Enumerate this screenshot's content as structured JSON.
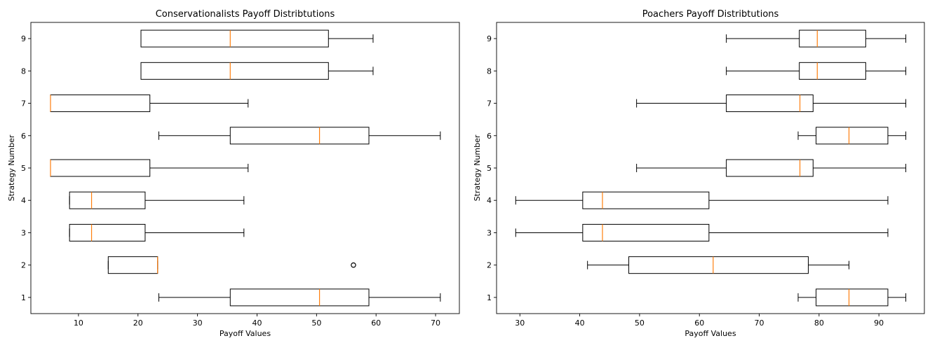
{
  "chart_data": [
    {
      "type": "boxplot",
      "orientation": "horizontal",
      "title": "Conservationalists Payoff Distribtutions",
      "xlabel": "Payoff Values",
      "ylabel": "Strategy Number",
      "xlim": [
        2,
        74
      ],
      "xticks": [
        10,
        20,
        30,
        40,
        50,
        60,
        70
      ],
      "ylim": [
        0.5,
        9.5
      ],
      "yticks": [
        1,
        2,
        3,
        4,
        5,
        6,
        7,
        8,
        9
      ],
      "colors": {
        "box": "#000000",
        "median": "#ff7f0e"
      },
      "boxes": [
        {
          "label": "1",
          "whisker_low": 23.5,
          "q1": 35.5,
          "median": 50.5,
          "q3": 58.8,
          "whisker_high": 70.8,
          "outliers": []
        },
        {
          "label": "2",
          "whisker_low": 15.0,
          "q1": 15.0,
          "median": 23.3,
          "q3": 23.3,
          "whisker_high": 23.3,
          "outliers": [
            56.2
          ]
        },
        {
          "label": "3",
          "whisker_low": 8.5,
          "q1": 8.5,
          "median": 12.2,
          "q3": 21.2,
          "whisker_high": 37.8,
          "outliers": []
        },
        {
          "label": "4",
          "whisker_low": 8.5,
          "q1": 8.5,
          "median": 12.2,
          "q3": 21.2,
          "whisker_high": 37.8,
          "outliers": []
        },
        {
          "label": "5",
          "whisker_low": 5.3,
          "q1": 5.3,
          "median": 5.3,
          "q3": 22.0,
          "whisker_high": 38.5,
          "outliers": []
        },
        {
          "label": "6",
          "whisker_low": 23.5,
          "q1": 35.5,
          "median": 50.5,
          "q3": 58.8,
          "whisker_high": 70.8,
          "outliers": []
        },
        {
          "label": "7",
          "whisker_low": 5.3,
          "q1": 5.3,
          "median": 5.3,
          "q3": 22.0,
          "whisker_high": 38.5,
          "outliers": []
        },
        {
          "label": "8",
          "whisker_low": 20.5,
          "q1": 20.5,
          "median": 35.5,
          "q3": 52.0,
          "whisker_high": 59.5,
          "outliers": []
        },
        {
          "label": "9",
          "whisker_low": 20.5,
          "q1": 20.5,
          "median": 35.5,
          "q3": 52.0,
          "whisker_high": 59.5,
          "outliers": []
        }
      ]
    },
    {
      "type": "boxplot",
      "orientation": "horizontal",
      "title": "Poachers Payoff Distribtutions",
      "xlabel": "Payoff Values",
      "ylabel": "Strategy Number",
      "xlim": [
        26.1,
        97.6
      ],
      "xticks": [
        30,
        40,
        50,
        60,
        70,
        80,
        90
      ],
      "ylim": [
        0.5,
        9.5
      ],
      "yticks": [
        1,
        2,
        3,
        4,
        5,
        6,
        7,
        8,
        9
      ],
      "colors": {
        "box": "#000000",
        "median": "#ff7f0e"
      },
      "boxes": [
        {
          "label": "1",
          "whisker_low": 76.5,
          "q1": 79.5,
          "median": 85.0,
          "q3": 91.5,
          "whisker_high": 94.5,
          "outliers": []
        },
        {
          "label": "2",
          "whisker_low": 41.3,
          "q1": 48.2,
          "median": 62.3,
          "q3": 78.2,
          "whisker_high": 85.0,
          "outliers": []
        },
        {
          "label": "3",
          "whisker_low": 29.3,
          "q1": 40.5,
          "median": 43.8,
          "q3": 61.6,
          "whisker_high": 91.5,
          "outliers": []
        },
        {
          "label": "4",
          "whisker_low": 29.3,
          "q1": 40.5,
          "median": 43.8,
          "q3": 61.6,
          "whisker_high": 91.5,
          "outliers": []
        },
        {
          "label": "5",
          "whisker_low": 49.5,
          "q1": 64.5,
          "median": 76.8,
          "q3": 79.0,
          "whisker_high": 94.5,
          "outliers": []
        },
        {
          "label": "6",
          "whisker_low": 76.5,
          "q1": 79.5,
          "median": 85.0,
          "q3": 91.5,
          "whisker_high": 94.5,
          "outliers": []
        },
        {
          "label": "7",
          "whisker_low": 49.5,
          "q1": 64.5,
          "median": 76.8,
          "q3": 79.0,
          "whisker_high": 94.5,
          "outliers": []
        },
        {
          "label": "8",
          "whisker_low": 64.5,
          "q1": 76.7,
          "median": 79.7,
          "q3": 87.8,
          "whisker_high": 94.5,
          "outliers": []
        },
        {
          "label": "9",
          "whisker_low": 64.5,
          "q1": 76.7,
          "median": 79.7,
          "q3": 87.8,
          "whisker_high": 94.5,
          "outliers": []
        }
      ]
    }
  ]
}
